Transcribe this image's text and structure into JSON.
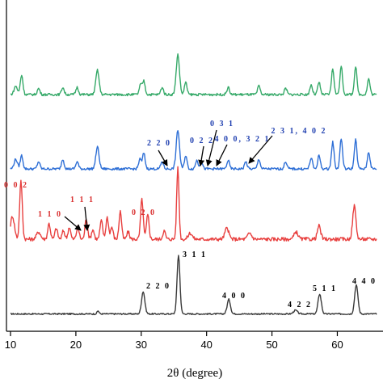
{
  "chart_data": {
    "type": "line",
    "title": "",
    "xlabel": "2θ (degree)",
    "ylabel": "",
    "xlim": [
      10,
      66
    ],
    "xticks": [
      10,
      20,
      30,
      40,
      50,
      60
    ],
    "grid": false,
    "legend": "none",
    "series": [
      {
        "color": "#3a3a3a",
        "baseline": 0.1,
        "noise": 0.012,
        "peaks": [
          [
            23.4,
            0.05,
            0.15
          ],
          [
            30.3,
            0.37,
            0.25
          ],
          [
            35.7,
            0.97,
            0.22
          ],
          [
            43.4,
            0.24,
            0.25
          ],
          [
            53.6,
            0.06,
            0.3
          ],
          [
            57.3,
            0.33,
            0.25
          ],
          [
            62.9,
            0.48,
            0.25
          ]
        ]
      },
      {
        "color": "#e8403f",
        "baseline": 0.12,
        "noise": 0.03,
        "peaks": [
          [
            10.3,
            0.38,
            0.3
          ],
          [
            11.6,
            0.95,
            0.2
          ],
          [
            14.3,
            0.12,
            0.3
          ],
          [
            15.9,
            0.26,
            0.2
          ],
          [
            17.0,
            0.18,
            0.2
          ],
          [
            18.1,
            0.14,
            0.2
          ],
          [
            19.0,
            0.2,
            0.2
          ],
          [
            20.3,
            0.2,
            0.2
          ],
          [
            21.6,
            0.34,
            0.2
          ],
          [
            22.6,
            0.16,
            0.2
          ],
          [
            23.9,
            0.3,
            0.2
          ],
          [
            24.8,
            0.36,
            0.2
          ],
          [
            25.5,
            0.2,
            0.2
          ],
          [
            26.8,
            0.46,
            0.2
          ],
          [
            28.0,
            0.12,
            0.2
          ],
          [
            30.1,
            0.66,
            0.2
          ],
          [
            31.0,
            0.4,
            0.2
          ],
          [
            33.5,
            0.14,
            0.2
          ],
          [
            35.6,
            1.18,
            0.18
          ],
          [
            37.5,
            0.1,
            0.3
          ],
          [
            43.1,
            0.18,
            0.3
          ],
          [
            46.6,
            0.1,
            0.3
          ],
          [
            53.7,
            0.12,
            0.3
          ],
          [
            57.2,
            0.22,
            0.25
          ],
          [
            62.6,
            0.55,
            0.25
          ]
        ]
      },
      {
        "color": "#2e6fd6",
        "baseline": 0.08,
        "noise": 0.02,
        "peaks": [
          [
            10.8,
            0.16,
            0.25
          ],
          [
            11.7,
            0.22,
            0.2
          ],
          [
            14.3,
            0.12,
            0.2
          ],
          [
            18.0,
            0.16,
            0.2
          ],
          [
            20.2,
            0.12,
            0.2
          ],
          [
            23.3,
            0.36,
            0.25
          ],
          [
            29.8,
            0.16,
            0.2
          ],
          [
            30.4,
            0.26,
            0.2
          ],
          [
            33.2,
            0.12,
            0.2
          ],
          [
            35.6,
            0.64,
            0.25
          ],
          [
            36.8,
            0.22,
            0.2
          ],
          [
            38.5,
            0.14,
            0.2
          ],
          [
            39.2,
            0.12,
            0.2
          ],
          [
            43.3,
            0.14,
            0.2
          ],
          [
            46.0,
            0.12,
            0.2
          ],
          [
            48.0,
            0.16,
            0.2
          ],
          [
            52.1,
            0.12,
            0.2
          ],
          [
            56.0,
            0.18,
            0.2
          ],
          [
            57.2,
            0.22,
            0.2
          ],
          [
            59.3,
            0.44,
            0.2
          ],
          [
            60.6,
            0.5,
            0.2
          ],
          [
            62.8,
            0.48,
            0.2
          ],
          [
            64.8,
            0.28,
            0.2
          ]
        ]
      },
      {
        "color": "#35a968",
        "baseline": 0.08,
        "noise": 0.02,
        "peaks": [
          [
            10.8,
            0.14,
            0.25
          ],
          [
            11.7,
            0.32,
            0.2
          ],
          [
            14.3,
            0.1,
            0.2
          ],
          [
            18.0,
            0.12,
            0.2
          ],
          [
            20.2,
            0.12,
            0.2
          ],
          [
            23.3,
            0.4,
            0.25
          ],
          [
            29.9,
            0.16,
            0.2
          ],
          [
            30.4,
            0.22,
            0.2
          ],
          [
            33.2,
            0.12,
            0.2
          ],
          [
            35.6,
            0.66,
            0.25
          ],
          [
            36.8,
            0.2,
            0.2
          ],
          [
            43.3,
            0.12,
            0.2
          ],
          [
            48.0,
            0.14,
            0.2
          ],
          [
            52.1,
            0.1,
            0.2
          ],
          [
            56.0,
            0.16,
            0.2
          ],
          [
            57.2,
            0.2,
            0.2
          ],
          [
            59.3,
            0.42,
            0.2
          ],
          [
            60.6,
            0.46,
            0.2
          ],
          [
            62.8,
            0.46,
            0.2
          ],
          [
            64.8,
            0.26,
            0.2
          ]
        ]
      }
    ],
    "annotations": [
      {
        "text": "2 2 0",
        "series": 0,
        "color": "#000000"
      },
      {
        "text": "3 1 1",
        "series": 0,
        "color": "#000000"
      },
      {
        "text": "4 0 0",
        "series": 0,
        "color": "#000000"
      },
      {
        "text": "4 2 2",
        "series": 0,
        "color": "#000000"
      },
      {
        "text": "5 1 1",
        "series": 0,
        "color": "#000000"
      },
      {
        "text": "4 4 0",
        "series": 0,
        "color": "#000000"
      },
      {
        "text": "0 0 2",
        "series": 1,
        "color": "#d93030"
      },
      {
        "text": "1 1 0",
        "series": 1,
        "color": "#d93030"
      },
      {
        "text": "1 1 1",
        "series": 1,
        "color": "#d93030"
      },
      {
        "text": "0 2 0",
        "series": 1,
        "color": "#d93030"
      },
      {
        "text": "2 2 0",
        "series": 2,
        "color": "#1f3fb0"
      },
      {
        "text": "0 2 2",
        "series": 2,
        "color": "#1f3fb0"
      },
      {
        "text": "0 3 1",
        "series": 2,
        "color": "#1f3fb0"
      },
      {
        "text": "4 0 0, 3 2 1",
        "series": 2,
        "color": "#1f3fb0"
      },
      {
        "text": "2 3 1, 4 0 2",
        "series": 2,
        "color": "#1f3fb0"
      }
    ]
  }
}
